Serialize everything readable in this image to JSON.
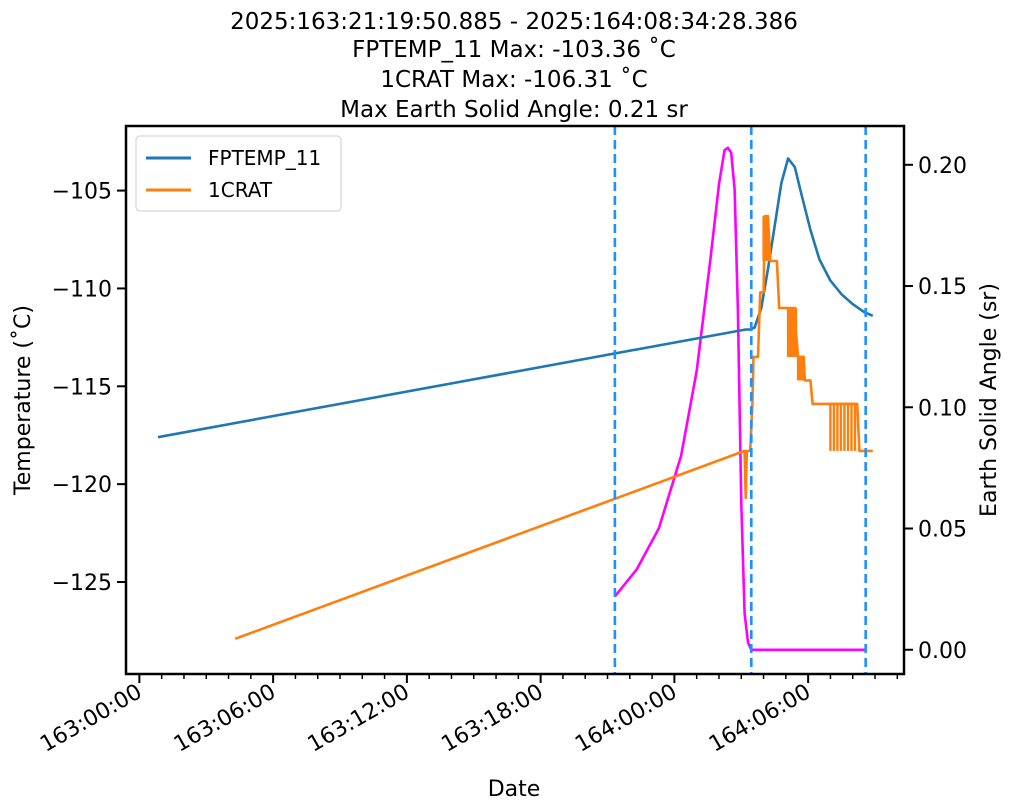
{
  "chart_data": {
    "type": "line",
    "title_lines": [
      "2025:163:21:19:50.885 - 2025:164:08:34:28.386",
      "FPTEMP_11 Max: -103.36 ˚C",
      "1CRAT Max: -106.31 ˚C",
      "Max Earth Solid Angle: 0.21 sr"
    ],
    "xlabel": "Date",
    "ylabel": "Temperature (˚C)",
    "y2label": "Earth Solid Angle (sr)",
    "x_ticks": [
      "163:00:00",
      "163:06:00",
      "163:12:00",
      "163:18:00",
      "164:00:00",
      "164:06:00"
    ],
    "x_tick_hours": [
      0,
      6,
      12,
      18,
      24,
      30
    ],
    "xlim_hours": [
      -0.6,
      34.3
    ],
    "ylim": [
      -129.7,
      -101.7
    ],
    "y_ticks": [
      -105,
      -110,
      -115,
      -120,
      -125
    ],
    "y_tick_labels": [
      "−105",
      "−110",
      "−115",
      "−120",
      "−125"
    ],
    "y2lim": [
      -0.01,
      0.216
    ],
    "y2_ticks": [
      0.2,
      0.15,
      0.1,
      0.05,
      0.0
    ],
    "y2_tick_labels": [
      "0.20",
      "0.15",
      "0.10",
      "0.05",
      "0.00"
    ],
    "vlines_hours": [
      21.33,
      27.45,
      32.58
    ],
    "legend_position": "upper-left",
    "colors": {
      "fptemp": "#1f77b4",
      "crat": "#ff7f0e",
      "solid_angle": "#ff00ff",
      "vline": "#1e90ff"
    },
    "series": [
      {
        "name": "FPTEMP_11",
        "axis": "left",
        "x": [
          0.83,
          27.2,
          27.4,
          27.6,
          27.9,
          28.2,
          28.5,
          28.8,
          29.1,
          29.4,
          29.7,
          30.1,
          30.5,
          31.0,
          31.5,
          32.0,
          32.5,
          32.9
        ],
        "y": [
          -117.6,
          -112.1,
          -112.1,
          -112.0,
          -111.0,
          -109.0,
          -106.8,
          -104.6,
          -103.36,
          -103.8,
          -105.2,
          -107.0,
          -108.5,
          -109.6,
          -110.3,
          -110.8,
          -111.2,
          -111.4
        ]
      },
      {
        "name": "1CRAT",
        "axis": "left",
        "x": [
          4.3,
          27.15,
          27.2,
          27.25,
          27.4,
          27.5,
          27.55,
          27.75,
          27.85,
          28.0,
          28.05,
          28.2,
          28.3,
          28.6,
          28.7,
          29.1,
          29.2,
          29.45,
          29.55,
          29.8,
          29.85,
          30.1,
          30.2,
          30.6,
          30.7,
          32.2,
          32.3,
          32.9
        ],
        "y": [
          -127.9,
          -118.3,
          -120.7,
          -118.3,
          -118.3,
          -115.9,
          -113.5,
          -113.5,
          -110.2,
          -110.2,
          -106.31,
          -106.31,
          -108.6,
          -108.6,
          -111.0,
          -111.0,
          -112.2,
          -112.2,
          -113.5,
          -113.5,
          -114.7,
          -114.7,
          -115.9,
          -115.9,
          -115.9,
          -115.9,
          -118.3,
          -118.3
        ]
      },
      {
        "name": "Earth Solid Angle",
        "axis": "right",
        "x": [
          21.33,
          22.3,
          23.3,
          24.3,
          25.0,
          25.6,
          26.0,
          26.25,
          26.4,
          26.55,
          26.7,
          26.85,
          27.0,
          27.15,
          27.3,
          27.45,
          30.0,
          32.58
        ],
        "y": [
          0.022,
          0.033,
          0.05,
          0.08,
          0.115,
          0.16,
          0.192,
          0.206,
          0.207,
          0.205,
          0.19,
          0.14,
          0.06,
          0.015,
          0.003,
          0.0,
          0.0,
          0.0
        ]
      }
    ],
    "crat_oscillation_bands": [
      {
        "x_start": 28.0,
        "x_end": 28.2,
        "y_low": -108.6,
        "y_high": -106.31
      },
      {
        "x_start": 29.1,
        "x_end": 29.45,
        "y_low": -113.5,
        "y_high": -111.0
      },
      {
        "x_start": 29.55,
        "x_end": 29.8,
        "y_low": -114.7,
        "y_high": -113.5
      },
      {
        "x_start": 31.0,
        "x_end": 32.1,
        "y_low": -118.3,
        "y_high": -115.9
      }
    ]
  }
}
